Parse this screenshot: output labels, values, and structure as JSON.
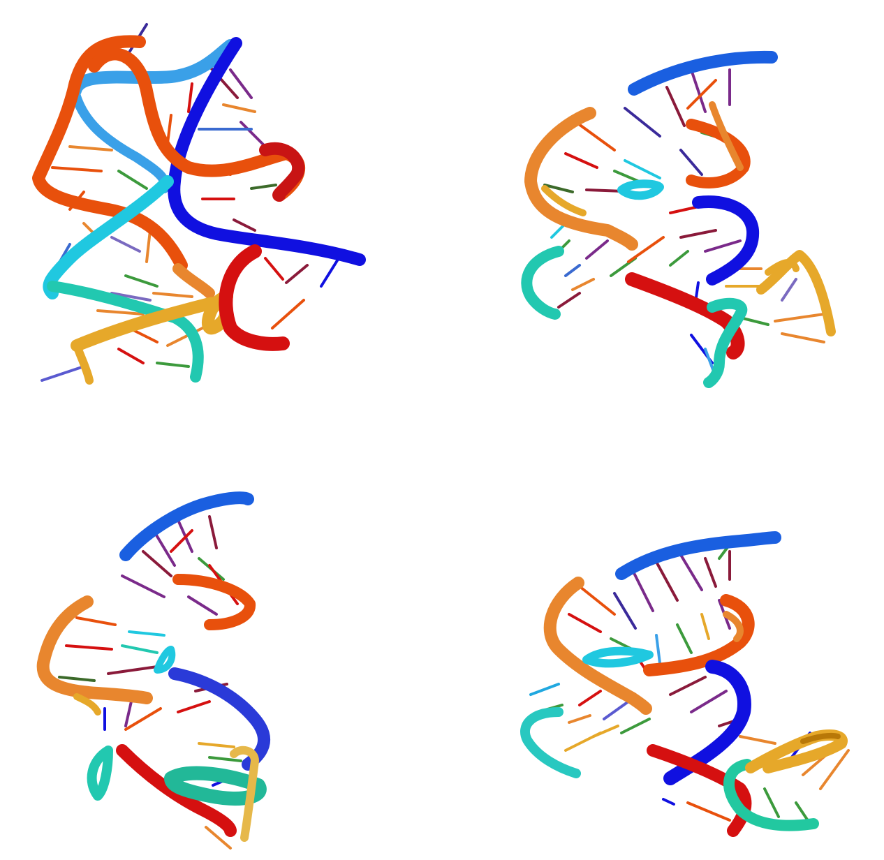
{
  "figure": {
    "kind": "rna-cartoon-renders",
    "background": "#ffffff",
    "panels": [
      {
        "name": "panel-top-left"
      },
      {
        "name": "panel-top-right"
      },
      {
        "name": "panel-bottom-left"
      },
      {
        "name": "panel-bottom-right"
      }
    ],
    "palette": {
      "red": "#d51010",
      "orange_red": "#e8500c",
      "orange": "#e8862e",
      "gold": "#e6a82a",
      "blue": "#1010e0",
      "sky_blue": "#1a5fe0",
      "light_blue": "#3aa0e8",
      "cyan": "#20c8e0",
      "teal": "#22c8b0",
      "green": "#3c9a3c",
      "purple": "#7a2a8a",
      "maroon": "#8a1a3a"
    }
  }
}
